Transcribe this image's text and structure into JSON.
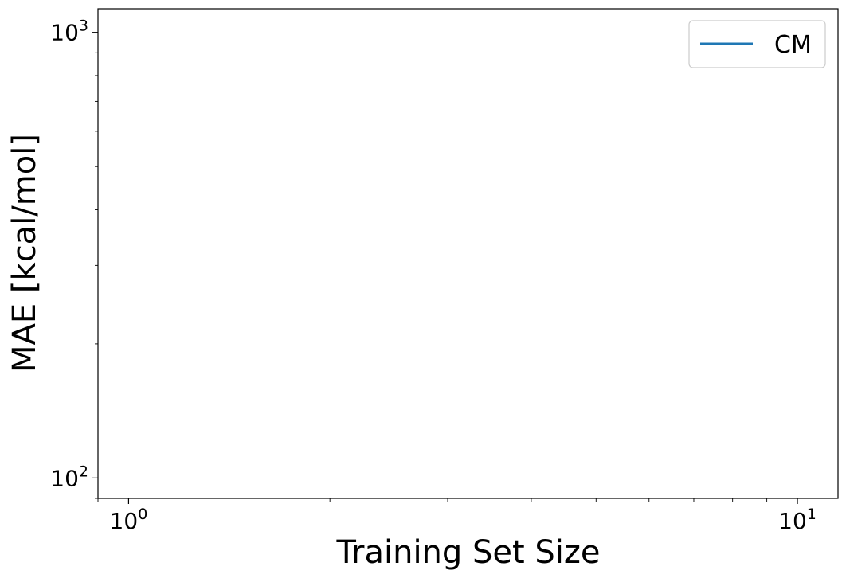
{
  "chart_data": {
    "type": "line",
    "title": "",
    "xlabel": "Training Set Size",
    "ylabel": "MAE [kcal/mol]",
    "x_scale": "log",
    "y_scale": "log",
    "xlim": [
      0.9,
      11.5
    ],
    "ylim": [
      90,
      1130
    ],
    "x_ticks": [
      {
        "value": 1,
        "base": "10",
        "exp": "0"
      },
      {
        "value": 10,
        "base": "10",
        "exp": "1"
      }
    ],
    "y_ticks": [
      {
        "value": 100,
        "base": "10",
        "exp": "2"
      },
      {
        "value": 1000,
        "base": "10",
        "exp": "3"
      }
    ],
    "series": [
      {
        "name": "CM",
        "color": "#1f77b4",
        "x": [],
        "y": []
      }
    ],
    "grid": false,
    "legend": {
      "position": "top-right",
      "entries": [
        "CM"
      ]
    }
  }
}
